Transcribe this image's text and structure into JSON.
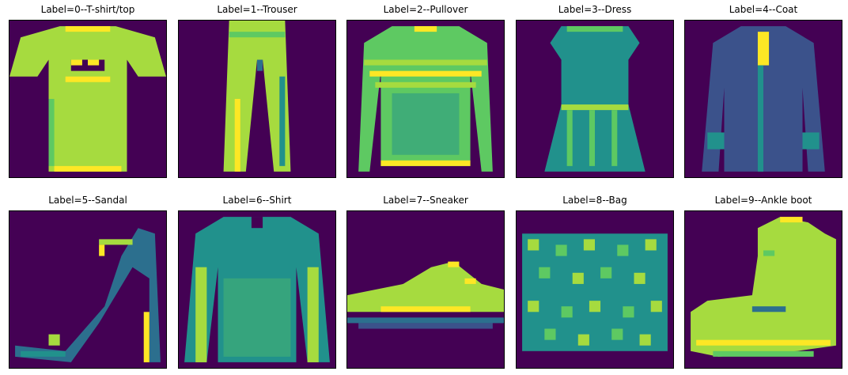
{
  "colors": {
    "background": "#440154",
    "low": "#2c6f8e",
    "mid": "#21918c",
    "midhigh": "#5ec962",
    "high": "#a6db3f",
    "peak": "#fde725"
  },
  "panels": [
    {
      "title": "Label=0--T-shirt/top",
      "icon": "t-shirt-image"
    },
    {
      "title": "Label=1--Trouser",
      "icon": "trouser-image"
    },
    {
      "title": "Label=2--Pullover",
      "icon": "pullover-image"
    },
    {
      "title": "Label=3--Dress",
      "icon": "dress-image"
    },
    {
      "title": "Label=4--Coat",
      "icon": "coat-image"
    },
    {
      "title": "Label=5--Sandal",
      "icon": "sandal-image"
    },
    {
      "title": "Label=6--Shirt",
      "icon": "shirt-image"
    },
    {
      "title": "Label=7--Sneaker",
      "icon": "sneaker-image"
    },
    {
      "title": "Label=8--Bag",
      "icon": "bag-image"
    },
    {
      "title": "Label=9--Ankle boot",
      "icon": "ankle-boot-image"
    }
  ]
}
